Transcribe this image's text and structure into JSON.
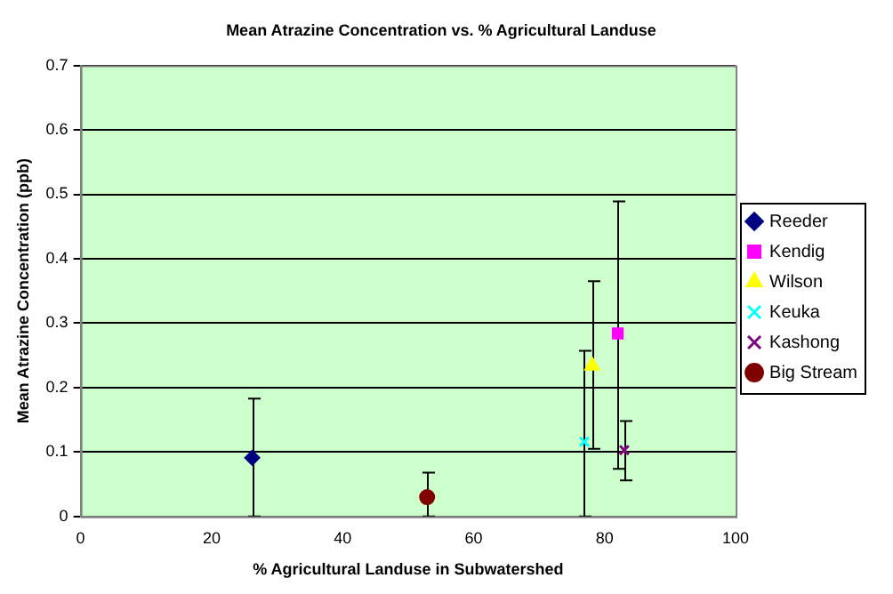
{
  "chart_data": {
    "type": "scatter",
    "title": "Mean Atrazine Concentration vs. % Agricultural Landuse",
    "xlabel": "% Agricultural Landuse in Subwatershed",
    "ylabel": "Mean Atrazine Concentration (ppb)",
    "xlim": [
      0,
      100
    ],
    "xticks": [
      0,
      20,
      40,
      60,
      80,
      100
    ],
    "ylim": [
      0,
      0.7
    ],
    "yticks": [
      0,
      0.1,
      0.2,
      0.3,
      0.4,
      0.5,
      0.6,
      0.7
    ],
    "grid": "y",
    "legend": "right",
    "series": [
      {
        "name": "Reeder",
        "color": "#000080",
        "marker": "diamond",
        "x": [
          26.2
        ],
        "values": [
          0.091
        ],
        "errors": [
          [
            0,
            0.183
          ]
        ]
      },
      {
        "name": "Kendig",
        "color": "#ff00ff",
        "marker": "square",
        "x": [
          82.0
        ],
        "values": [
          0.284
        ],
        "errors": [
          [
            0.074,
            0.489
          ]
        ]
      },
      {
        "name": "Wilson",
        "color": "#ffff00",
        "marker": "triangle",
        "x": [
          78.1
        ],
        "values": [
          0.234
        ],
        "errors": [
          [
            0.105,
            0.365
          ]
        ]
      },
      {
        "name": "Keuka",
        "color": "#00ffff",
        "marker": "cross",
        "x": [
          76.9
        ],
        "values": [
          0.116
        ],
        "errors": [
          [
            0,
            0.257
          ]
        ]
      },
      {
        "name": "Kashong",
        "color": "#800080",
        "marker": "cross",
        "x": [
          83.0
        ],
        "values": [
          0.103
        ],
        "errors": [
          [
            0.056,
            0.148
          ]
        ]
      },
      {
        "name": "Big Stream",
        "color": "#800000",
        "marker": "circle",
        "x": [
          52.9
        ],
        "values": [
          0.03
        ],
        "errors": [
          [
            0,
            0.068
          ]
        ]
      }
    ]
  }
}
